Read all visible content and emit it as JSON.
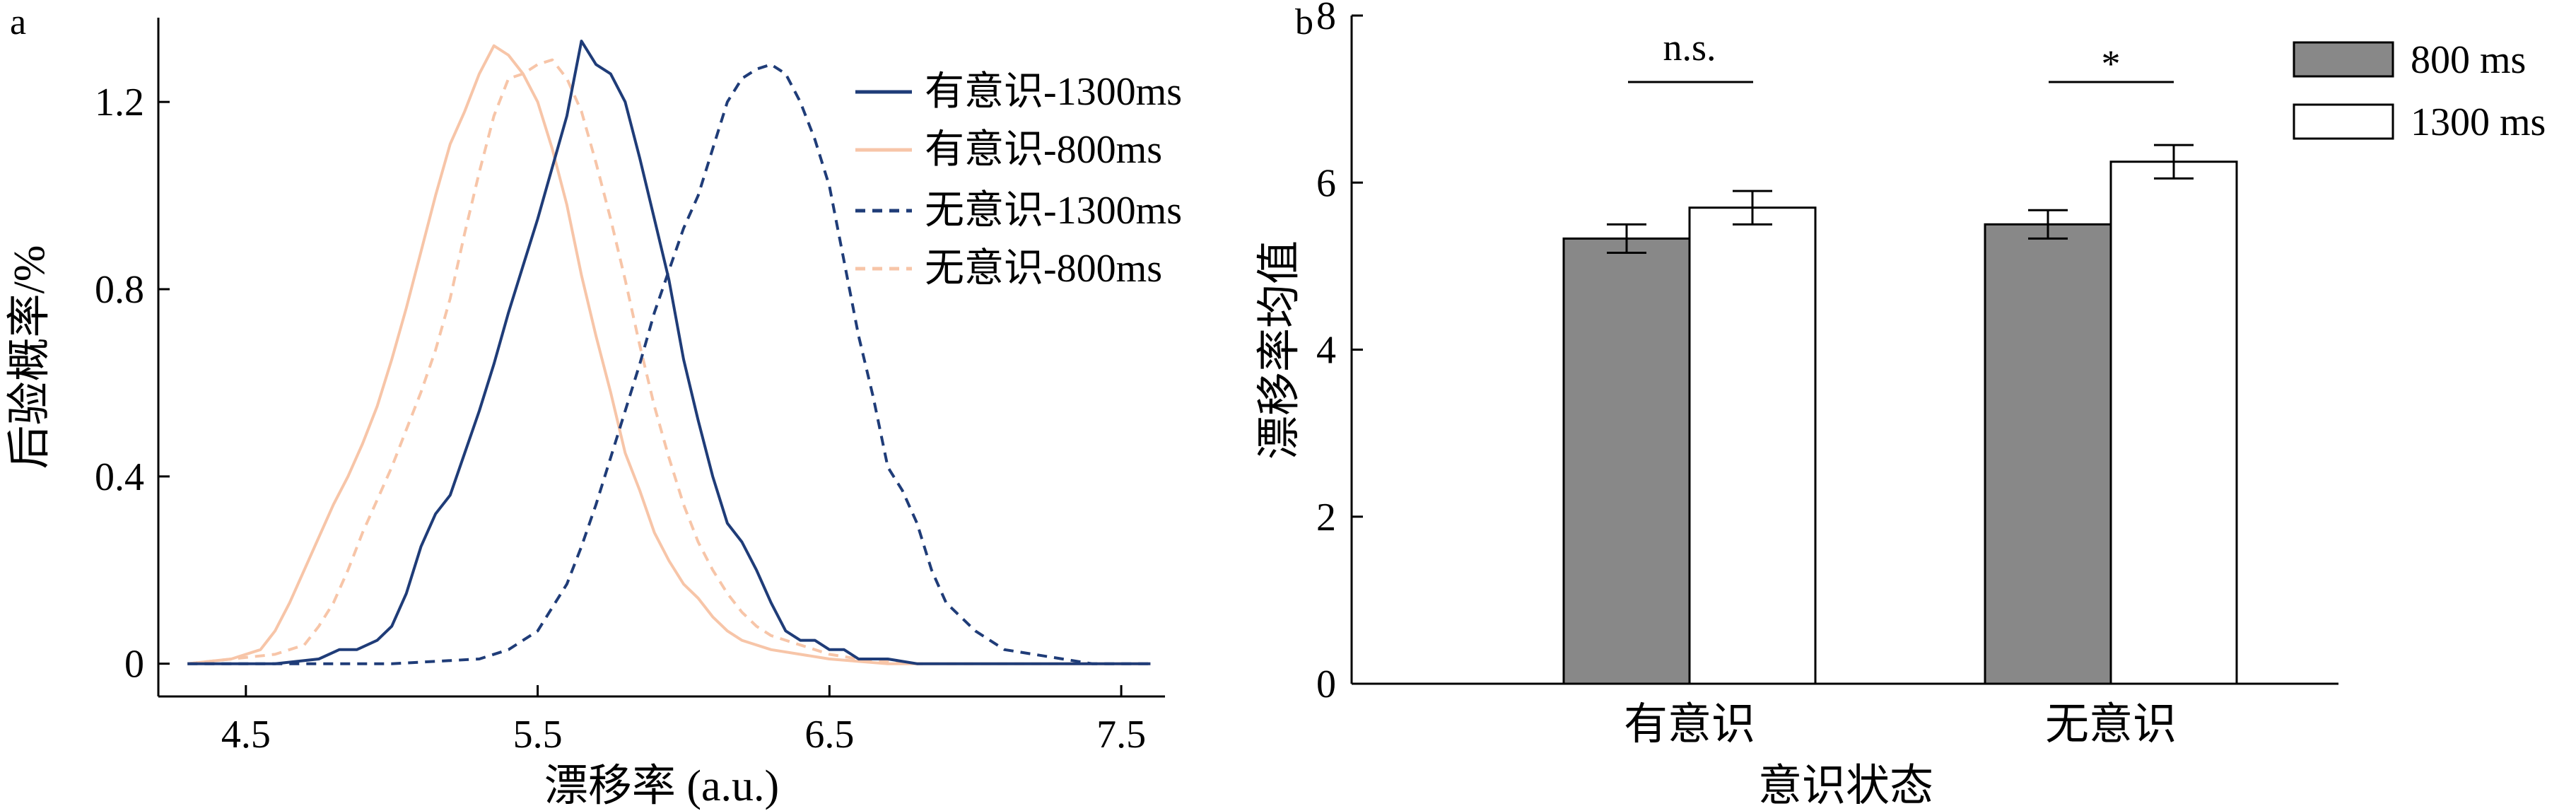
{
  "chart_data": [
    {
      "panel_label": "a",
      "type": "line",
      "xlabel": "漂移率 (a.u.)",
      "ylabel": "后验概率/%",
      "xlim": [
        4.2,
        7.65
      ],
      "ylim": [
        -0.07,
        1.38
      ],
      "xticks": [
        "4.5",
        "5.5",
        "6.5",
        "7.5"
      ],
      "yticks": [
        "0",
        "0.4",
        "0.8",
        "1.2"
      ],
      "legend": [
        "有意识-1300ms",
        "有意识-800ms",
        "无意识-1300ms",
        "无意识-800ms"
      ],
      "colors": {
        "navy": "#1f3c78",
        "peach": "#f7c5a8"
      },
      "series": [
        {
          "name": "有意识-1300ms",
          "style": "solid",
          "color": "#1f3c78",
          "x": [
            4.3,
            4.6,
            4.75,
            4.82,
            4.88,
            4.95,
            5.0,
            5.05,
            5.1,
            5.15,
            5.2,
            5.25,
            5.3,
            5.35,
            5.4,
            5.45,
            5.5,
            5.55,
            5.6,
            5.65,
            5.7,
            5.75,
            5.8,
            5.85,
            5.9,
            5.95,
            6.0,
            6.05,
            6.1,
            6.15,
            6.2,
            6.25,
            6.3,
            6.35,
            6.4,
            6.45,
            6.5,
            6.55,
            6.6,
            6.7,
            6.8,
            7.0,
            7.6
          ],
          "y": [
            0.0,
            0.0,
            0.01,
            0.03,
            0.03,
            0.05,
            0.08,
            0.15,
            0.25,
            0.32,
            0.36,
            0.45,
            0.54,
            0.64,
            0.75,
            0.85,
            0.95,
            1.06,
            1.17,
            1.33,
            1.28,
            1.26,
            1.2,
            1.08,
            0.95,
            0.82,
            0.65,
            0.52,
            0.4,
            0.3,
            0.26,
            0.2,
            0.13,
            0.07,
            0.05,
            0.05,
            0.03,
            0.03,
            0.01,
            0.01,
            0.0,
            0.0,
            0.0
          ]
        },
        {
          "name": "有意识-800ms",
          "style": "solid",
          "color": "#f7c5a8",
          "x": [
            4.3,
            4.45,
            4.55,
            4.6,
            4.65,
            4.7,
            4.75,
            4.8,
            4.85,
            4.9,
            4.95,
            5.0,
            5.05,
            5.1,
            5.15,
            5.2,
            5.25,
            5.3,
            5.35,
            5.4,
            5.45,
            5.5,
            5.55,
            5.6,
            5.65,
            5.7,
            5.75,
            5.8,
            5.85,
            5.9,
            5.95,
            6.0,
            6.05,
            6.1,
            6.15,
            6.2,
            6.3,
            6.5,
            6.7,
            7.0,
            7.6
          ],
          "y": [
            0.0,
            0.01,
            0.03,
            0.07,
            0.13,
            0.2,
            0.27,
            0.34,
            0.4,
            0.47,
            0.55,
            0.65,
            0.76,
            0.88,
            1.0,
            1.11,
            1.18,
            1.26,
            1.32,
            1.3,
            1.26,
            1.2,
            1.1,
            0.98,
            0.83,
            0.7,
            0.58,
            0.45,
            0.37,
            0.28,
            0.22,
            0.17,
            0.14,
            0.1,
            0.07,
            0.05,
            0.03,
            0.01,
            0.0,
            0.0,
            0.0
          ]
        },
        {
          "name": "无意识-1300ms",
          "style": "dashed",
          "color": "#1f3c78",
          "x": [
            4.3,
            5.0,
            5.3,
            5.4,
            5.45,
            5.5,
            5.55,
            5.6,
            5.65,
            5.7,
            5.75,
            5.8,
            5.85,
            5.9,
            5.95,
            6.0,
            6.05,
            6.1,
            6.15,
            6.2,
            6.25,
            6.3,
            6.35,
            6.4,
            6.45,
            6.5,
            6.55,
            6.6,
            6.65,
            6.7,
            6.75,
            6.8,
            6.85,
            6.9,
            6.95,
            7.0,
            7.05,
            7.1,
            7.2,
            7.4,
            7.6
          ],
          "y": [
            0.0,
            0.0,
            0.01,
            0.03,
            0.05,
            0.07,
            0.12,
            0.17,
            0.25,
            0.34,
            0.44,
            0.54,
            0.64,
            0.75,
            0.84,
            0.93,
            1.0,
            1.1,
            1.2,
            1.25,
            1.27,
            1.28,
            1.26,
            1.2,
            1.12,
            1.02,
            0.86,
            0.7,
            0.57,
            0.42,
            0.37,
            0.3,
            0.2,
            0.13,
            0.1,
            0.07,
            0.05,
            0.03,
            0.02,
            0.0,
            0.0
          ]
        },
        {
          "name": "无意识-800ms",
          "style": "dashed",
          "color": "#f7c5a8",
          "x": [
            4.3,
            4.6,
            4.7,
            4.75,
            4.8,
            4.85,
            4.9,
            4.95,
            5.0,
            5.05,
            5.1,
            5.15,
            5.2,
            5.25,
            5.3,
            5.35,
            5.4,
            5.45,
            5.5,
            5.55,
            5.6,
            5.65,
            5.7,
            5.75,
            5.8,
            5.85,
            5.9,
            5.95,
            6.0,
            6.05,
            6.1,
            6.15,
            6.2,
            6.25,
            6.3,
            6.4,
            6.5,
            6.6,
            6.8,
            7.1,
            7.6
          ],
          "y": [
            0.0,
            0.02,
            0.04,
            0.08,
            0.13,
            0.2,
            0.28,
            0.35,
            0.42,
            0.5,
            0.58,
            0.67,
            0.78,
            0.92,
            1.05,
            1.17,
            1.25,
            1.26,
            1.28,
            1.29,
            1.25,
            1.18,
            1.07,
            0.95,
            0.82,
            0.68,
            0.55,
            0.44,
            0.34,
            0.26,
            0.2,
            0.15,
            0.11,
            0.08,
            0.06,
            0.04,
            0.02,
            0.01,
            0.0,
            0.0,
            0.0
          ]
        }
      ]
    },
    {
      "panel_label": "b",
      "type": "bar",
      "xlabel": "意识状态",
      "ylabel": "漂移率均值",
      "categories": [
        "有意识",
        "无意识"
      ],
      "ylim": [
        0,
        8
      ],
      "yticks": [
        "0",
        "2",
        "4",
        "6",
        "8"
      ],
      "legend": [
        "800 ms",
        "1300 ms"
      ],
      "series": [
        {
          "name": "800 ms",
          "color": "#888888",
          "values": [
            5.33,
            5.5
          ],
          "errors": [
            0.17,
            0.17
          ]
        },
        {
          "name": "1300 ms",
          "color": "#ffffff",
          "values": [
            5.7,
            6.25
          ],
          "errors": [
            0.2,
            0.2
          ]
        }
      ],
      "significance": [
        "n.s.",
        "*"
      ]
    }
  ]
}
